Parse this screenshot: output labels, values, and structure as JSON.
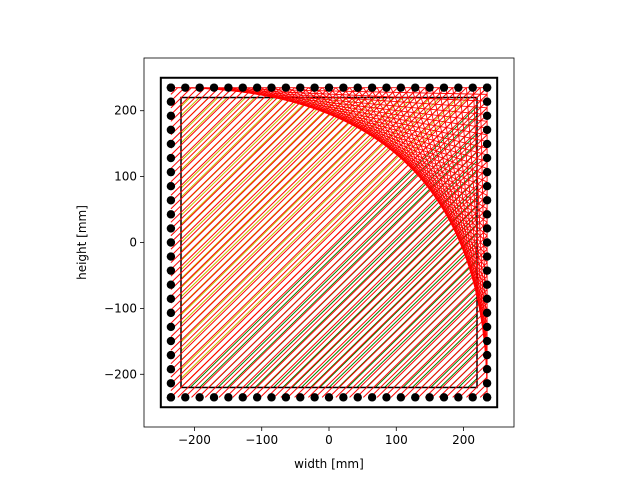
{
  "chart_data": {
    "type": "line",
    "xlabel": "width [mm]",
    "ylabel": "height [mm]",
    "xlim": [
      -275,
      275
    ],
    "ylim": [
      -280,
      280
    ],
    "xticks": [
      -200,
      -100,
      0,
      100,
      200
    ],
    "yticks": [
      -200,
      -100,
      0,
      100,
      200
    ],
    "xtick_labels": [
      "−200",
      "−100",
      "0",
      "100",
      "200"
    ],
    "ytick_labels": [
      "−200",
      "−100",
      "0",
      "100",
      "200"
    ],
    "grid": false,
    "frame_outer": {
      "x": [
        -250,
        250
      ],
      "y": [
        -250,
        250
      ]
    },
    "frame_inner": {
      "x": [
        -220,
        220
      ],
      "y": [
        -220,
        220
      ]
    },
    "nail_bounds": {
      "x": [
        -235,
        235
      ],
      "y": [
        -235,
        235
      ]
    },
    "nails_per_side": 23,
    "thread_colors": {
      "fill_upper_left": "#bfbf00",
      "fill_lower_right": "#008000",
      "string_art": "#ff0000",
      "frame": "#000000",
      "nails": "#000000"
    }
  }
}
